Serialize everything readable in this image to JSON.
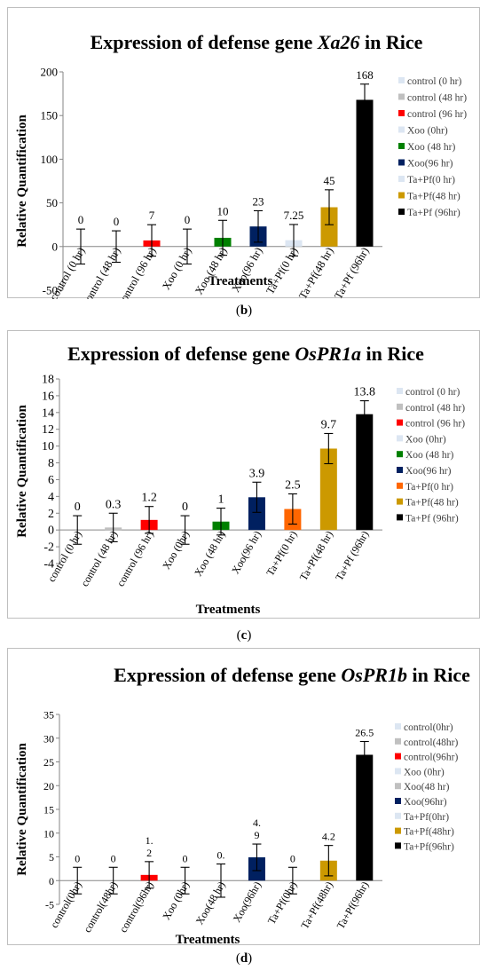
{
  "panels": [
    {
      "caption_letter": "b",
      "chart_data": {
        "type": "bar",
        "title_prefix": "Expression of defense gene ",
        "title_gene": "Xa26",
        "title_suffix": " in Rice",
        "xlabel": "Treatments",
        "ylabel": "Relative Quantification",
        "ylim": [
          -50,
          200
        ],
        "yticks": [
          -50,
          0,
          50,
          100,
          150,
          200
        ],
        "grid": false,
        "legend_position": "right",
        "categories": [
          "control (0 hr)",
          "control (48 hr)",
          "control (96 hr)",
          "Xoo (0 hr)",
          "Xoo (48 hr)",
          "Xoo(96 hr)",
          "Ta+Pf(0 hr)",
          "Ta+Pf(48 hr)",
          "Ta+Pf (96hr)"
        ],
        "values": [
          0,
          0,
          7,
          0,
          10,
          23,
          7.25,
          45,
          168
        ],
        "errors": [
          20,
          18,
          18,
          20,
          20,
          18,
          18,
          20,
          18
        ],
        "data_labels": [
          "0",
          "0",
          "7",
          "0",
          "10",
          "23",
          "7.25",
          "45",
          "168"
        ],
        "colors": [
          "#dce6f2",
          "#c0c0c0",
          "#ff0000",
          "#dce6f2",
          "#008000",
          "#002060",
          "#dce6f2",
          "#cc9900",
          "#000000"
        ],
        "legend": [
          "control (0 hr)",
          "control (48 hr)",
          "control (96 hr)",
          "Xoo (0hr)",
          "Xoo (48 hr)",
          "Xoo(96 hr)",
          "Ta+Pf(0 hr)",
          "Ta+Pf(48 hr)",
          "Ta+Pf (96hr)"
        ]
      }
    },
    {
      "caption_letter": "c",
      "chart_data": {
        "type": "bar",
        "title_prefix": "Expression of defense gene ",
        "title_gene": "OsPR1a",
        "title_suffix": " in Rice",
        "xlabel": "Treatments",
        "ylabel": "Relative Quantification",
        "ylim": [
          -4,
          18
        ],
        "yticks": [
          -4,
          -2,
          0,
          2,
          4,
          6,
          8,
          10,
          12,
          14,
          16,
          18
        ],
        "grid": false,
        "legend_position": "right",
        "categories": [
          "control (0 hr)",
          "control (48 hr)",
          "control (96 hr)",
          "Xoo (0hr)",
          "Xoo (48 hr)",
          "Xoo(96 hr)",
          "Ta+Pf(0 hr)",
          "Ta+Pf(48 hr)",
          "Ta+Pf (96hr)"
        ],
        "values": [
          0,
          0.3,
          1.2,
          0,
          1,
          3.9,
          2.5,
          9.7,
          13.8
        ],
        "errors": [
          1.7,
          1.7,
          1.6,
          1.7,
          1.6,
          1.8,
          1.8,
          1.8,
          1.6
        ],
        "data_labels": [
          "0",
          "0.3",
          "1.2",
          "0",
          "1",
          "3.9",
          "2.5",
          "9.7",
          "13.8"
        ],
        "colors": [
          "#dce6f2",
          "#c0c0c0",
          "#ff0000",
          "#dce6f2",
          "#008000",
          "#002060",
          "#ff6600",
          "#cc9900",
          "#000000"
        ],
        "legend": [
          "control (0 hr)",
          "control (48 hr)",
          "control (96 hr)",
          "Xoo (0hr)",
          "Xoo (48 hr)",
          "Xoo(96 hr)",
          "Ta+Pf(0 hr)",
          "Ta+Pf(48 hr)",
          "Ta+Pf (96hr)"
        ]
      }
    },
    {
      "caption_letter": "d",
      "chart_data": {
        "type": "bar",
        "title_prefix": "Expression of defense gene ",
        "title_gene": "OsPR1b",
        "title_suffix": " in Rice",
        "xlabel": "Treatments",
        "ylabel": "Relative Quantification",
        "ylim": [
          -5,
          35
        ],
        "yticks": [
          -5,
          0,
          5,
          10,
          15,
          20,
          25,
          30,
          35
        ],
        "grid": false,
        "legend_position": "right",
        "categories": [
          "control(0hr)",
          "control(48hr)",
          "control(96hr)",
          "Xoo (0hr)",
          "Xoo(48 hr)",
          "Xoo(96hr)",
          "Ta+Pf(0hr)",
          "Ta+Pf(48hr)",
          "Ta+Pf(96hr)"
        ],
        "values": [
          0,
          0,
          1.2,
          0,
          0,
          4.9,
          0,
          4.2,
          26.5
        ],
        "errors": [
          2.8,
          2.8,
          2.8,
          2.8,
          3.5,
          2.8,
          2.8,
          3.2,
          2.8
        ],
        "data_labels": [
          "0",
          "0",
          "1.\n2",
          "0",
          "0.",
          "4.\n9",
          "0",
          "4.2",
          "26.5"
        ],
        "colors": [
          "#dce6f2",
          "#c0c0c0",
          "#ff0000",
          "#dce6f2",
          "#c0c0c0",
          "#002060",
          "#dce6f2",
          "#cc9900",
          "#000000"
        ],
        "legend": [
          "control(0hr)",
          "control(48hr)",
          "control(96hr)",
          "Xoo (0hr)",
          "Xoo(48 hr)",
          "Xoo(96hr)",
          "Ta+Pf(0hr)",
          "Ta+Pf(48hr)",
          "Ta+Pf(96hr)"
        ]
      }
    }
  ]
}
